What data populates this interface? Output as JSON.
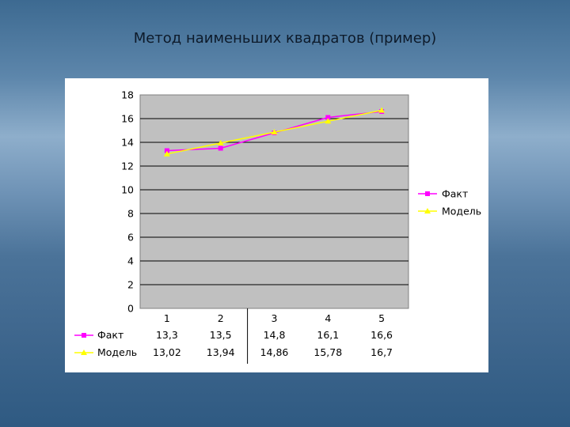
{
  "slide": {
    "title": "Метод наименьших квадратов (пример)"
  },
  "chart_data": {
    "type": "line",
    "categories": [
      "1",
      "2",
      "3",
      "4",
      "5"
    ],
    "series": [
      {
        "name": "Факт",
        "values": [
          13.3,
          13.5,
          14.8,
          16.1,
          16.6
        ],
        "labels": [
          "13,3",
          "13,5",
          "14,8",
          "16,1",
          "16,6"
        ],
        "color": "#ff00ff",
        "marker": "square"
      },
      {
        "name": "Модель",
        "values": [
          13.02,
          13.94,
          14.86,
          15.78,
          16.7
        ],
        "labels": [
          "13,02",
          "13,94",
          "14,86",
          "15,78",
          "16,7"
        ],
        "color": "#ffff00",
        "marker": "triangle"
      }
    ],
    "yticks": [
      "0",
      "2",
      "4",
      "6",
      "8",
      "10",
      "12",
      "14",
      "16",
      "18"
    ],
    "ylim": [
      0,
      18
    ],
    "grid": true,
    "legend": "right",
    "data_table": true,
    "plot_background": "#c0c0c0"
  }
}
